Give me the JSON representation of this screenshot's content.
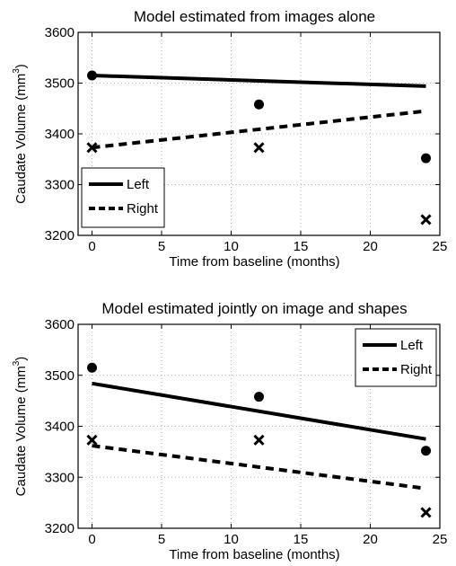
{
  "chart_data": [
    {
      "type": "line",
      "title": "Model estimated from images alone",
      "xlabel": "Time from baseline (months)",
      "ylabel_main": "Caudate Volume (mm",
      "ylabel_sup": "3",
      "ylabel_close": ")",
      "xlim": [
        -1,
        25
      ],
      "ylim": [
        3200,
        3600
      ],
      "xticks": [
        "0",
        "5",
        "10",
        "15",
        "20",
        "25"
      ],
      "yticks": [
        "3200",
        "3300",
        "3400",
        "3500",
        "3600"
      ],
      "grid": true,
      "legend_position": "bottom-left",
      "series": [
        {
          "name": "Left",
          "style": "solid",
          "line": {
            "x": [
              0,
              24
            ],
            "y": [
              3515,
              3494
            ]
          }
        },
        {
          "name": "Right",
          "style": "dashed",
          "line": {
            "x": [
              0,
              24
            ],
            "y": [
              3373,
              3445
            ]
          }
        }
      ],
      "observations": [
        {
          "marker": "circle",
          "x": [
            0,
            12,
            24
          ],
          "y": [
            3515,
            3458,
            3352
          ]
        },
        {
          "marker": "x",
          "x": [
            0,
            12,
            24
          ],
          "y": [
            3373,
            3373,
            3231
          ]
        }
      ]
    },
    {
      "type": "line",
      "title": "Model estimated jointly on image and shapes",
      "xlabel": "Time from baseline (months)",
      "ylabel_main": "Caudate Volume (mm",
      "ylabel_sup": "3",
      "ylabel_close": ")",
      "xlim": [
        -1,
        25
      ],
      "ylim": [
        3200,
        3600
      ],
      "xticks": [
        "0",
        "5",
        "10",
        "15",
        "20",
        "25"
      ],
      "yticks": [
        "3200",
        "3300",
        "3400",
        "3500",
        "3600"
      ],
      "grid": true,
      "legend_position": "top-right",
      "series": [
        {
          "name": "Left",
          "style": "solid",
          "line": {
            "x": [
              0,
              24
            ],
            "y": [
              3484,
              3375
            ]
          }
        },
        {
          "name": "Right",
          "style": "dashed",
          "line": {
            "x": [
              0,
              24
            ],
            "y": [
              3362,
              3278
            ]
          }
        }
      ],
      "observations": [
        {
          "marker": "circle",
          "x": [
            0,
            12,
            24
          ],
          "y": [
            3515,
            3458,
            3352
          ]
        },
        {
          "marker": "x",
          "x": [
            0,
            12,
            24
          ],
          "y": [
            3373,
            3373,
            3231
          ]
        }
      ]
    }
  ]
}
